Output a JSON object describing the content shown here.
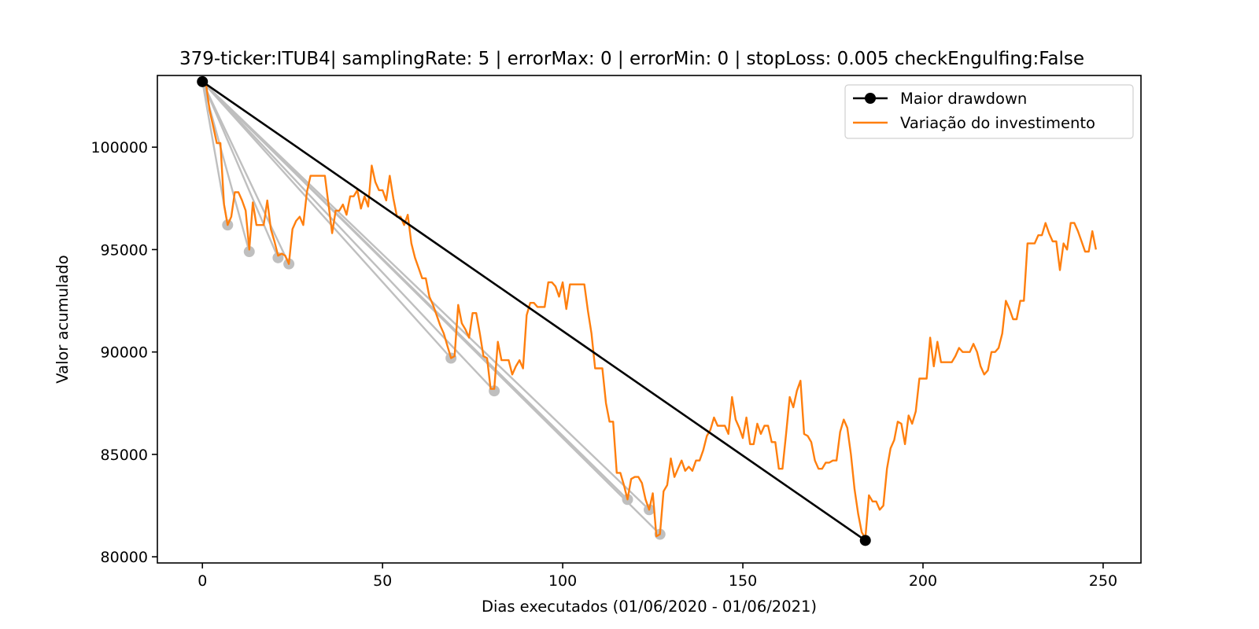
{
  "chart_data": {
    "type": "line",
    "title": "379-ticker:ITUB4| samplingRate: 5 | errorMax: 0 | errorMin: 0 | stopLoss: 0.005 checkEngulfing:False",
    "xlabel": "Dias executados (01/06/2020 - 01/06/2021)",
    "ylabel": "Valor acumulado",
    "xlim": [
      -12.5,
      260.5
    ],
    "ylim": [
      79700,
      103500
    ],
    "xticks": [
      0,
      50,
      100,
      150,
      200,
      250
    ],
    "yticks": [
      80000,
      85000,
      90000,
      95000,
      100000
    ],
    "xtick_labels": [
      "0",
      "50",
      "100",
      "150",
      "200",
      "250"
    ],
    "ytick_labels": [
      "80000",
      "85000",
      "90000",
      "95000",
      "100000"
    ],
    "grid": false,
    "legend_position": "upper right",
    "colors": {
      "investment": "#ff7f0e",
      "max_drawdown": "#000000",
      "drawdowns": "#bfbfbf"
    },
    "series": [
      {
        "name": "Variação do investimento",
        "x": [
          0,
          1,
          2,
          3,
          4,
          5,
          6,
          7,
          8,
          9,
          10,
          11,
          12,
          13,
          14,
          15,
          16,
          17,
          18,
          19,
          20,
          21,
          22,
          23,
          24,
          25,
          26,
          27,
          28,
          29,
          30,
          31,
          32,
          33,
          34,
          35,
          36,
          37,
          38,
          39,
          40,
          41,
          42,
          43,
          44,
          45,
          46,
          47,
          48,
          49,
          50,
          51,
          52,
          53,
          54,
          55,
          56,
          57,
          58,
          59,
          60,
          61,
          62,
          63,
          64,
          65,
          66,
          67,
          68,
          69,
          70,
          71,
          72,
          73,
          74,
          75,
          76,
          77,
          78,
          79,
          80,
          81,
          82,
          83,
          84,
          85,
          86,
          87,
          88,
          89,
          90,
          91,
          92,
          93,
          94,
          95,
          96,
          97,
          98,
          99,
          100,
          101,
          102,
          103,
          104,
          105,
          106,
          107,
          108,
          109,
          110,
          111,
          112,
          113,
          114,
          115,
          116,
          117,
          118,
          119,
          120,
          121,
          122,
          123,
          124,
          125,
          126,
          127,
          128,
          129,
          130,
          131,
          132,
          133,
          134,
          135,
          136,
          137,
          138,
          139,
          140,
          141,
          142,
          143,
          144,
          145,
          146,
          147,
          148,
          149,
          150,
          151,
          152,
          153,
          154,
          155,
          156,
          157,
          158,
          159,
          160,
          161,
          162,
          163,
          164,
          165,
          166,
          167,
          168,
          169,
          170,
          171,
          172,
          173,
          174,
          175,
          176,
          177,
          178,
          179,
          180,
          181,
          182,
          183,
          184,
          185,
          186,
          187,
          188,
          189,
          190,
          191,
          192,
          193,
          194,
          195,
          196,
          197,
          198,
          199,
          200,
          201,
          202,
          203,
          204,
          205,
          206,
          207,
          208,
          209,
          210,
          211,
          212,
          213,
          214,
          215,
          216,
          217,
          218,
          219,
          220,
          221,
          222,
          223,
          224,
          225,
          226,
          227,
          228,
          229,
          230,
          231,
          232,
          233,
          234,
          235,
          236,
          237,
          238,
          239,
          240,
          241,
          242,
          243,
          244,
          245,
          246,
          247,
          248
        ],
        "y": [
          103200,
          103100,
          101800,
          101000,
          100200,
          100200,
          97200,
          96200,
          96600,
          97800,
          97800,
          97400,
          96900,
          95000,
          97300,
          96200,
          96200,
          96200,
          97400,
          96000,
          95400,
          94700,
          94800,
          94700,
          94300,
          96000,
          96400,
          96600,
          96200,
          97800,
          98600,
          98600,
          98600,
          98600,
          98600,
          97200,
          95800,
          96900,
          96900,
          97200,
          96700,
          97600,
          97600,
          97900,
          97000,
          97600,
          97100,
          99100,
          98300,
          97900,
          97900,
          97400,
          98600,
          97500,
          96600,
          96600,
          96200,
          96700,
          95300,
          94600,
          94100,
          93600,
          93600,
          92700,
          92300,
          91800,
          91300,
          90900,
          90300,
          89700,
          89800,
          92300,
          91400,
          91100,
          90700,
          91900,
          91900,
          90900,
          89800,
          89700,
          88200,
          88200,
          90500,
          89600,
          89600,
          89600,
          88900,
          89300,
          89600,
          89200,
          91800,
          92400,
          92400,
          92200,
          92200,
          92200,
          93400,
          93400,
          93200,
          92700,
          93400,
          92100,
          93300,
          93300,
          93300,
          93300,
          93300,
          92000,
          90900,
          89200,
          89200,
          89200,
          87500,
          86600,
          86600,
          84100,
          84100,
          83500,
          82800,
          83800,
          83900,
          83900,
          83600,
          82800,
          82300,
          83100,
          81000,
          81100,
          83200,
          83500,
          84800,
          83900,
          84300,
          84700,
          84200,
          84400,
          84200,
          84700,
          84700,
          85200,
          85900,
          86200,
          86800,
          86400,
          86400,
          86400,
          86000,
          87800,
          86700,
          86300,
          85800,
          86800,
          85500,
          85500,
          86500,
          86000,
          86400,
          86400,
          85600,
          85600,
          84300,
          84300,
          86000,
          87800,
          87300,
          88100,
          88600,
          86000,
          85900,
          85600,
          84700,
          84300,
          84300,
          84600,
          84600,
          84700,
          84700,
          86100,
          86700,
          86300,
          85000,
          83300,
          82100,
          81200,
          80900,
          83000,
          82700,
          82700,
          82300,
          82500,
          84300,
          85300,
          85700,
          86600,
          86500,
          85500,
          86900,
          86500,
          87100,
          88700,
          88700,
          88700,
          90700,
          89300,
          90500,
          89500,
          89500,
          89500,
          89500,
          89800,
          90200,
          90000,
          90000,
          90000,
          90400,
          90000,
          89300,
          88900,
          89100,
          90000,
          90000,
          90200,
          90900,
          92500,
          92100,
          91600,
          91600,
          92500,
          92500,
          95300,
          95300,
          95300,
          95700,
          95700,
          96300,
          95800,
          95400,
          95400,
          94000,
          95300,
          95000,
          96300,
          96300,
          95900,
          95400,
          94900,
          94900,
          95900,
          95000
        ]
      }
    ],
    "max_drawdown": {
      "name": "Maior drawdown",
      "start": {
        "x": 0,
        "y": 103200
      },
      "end": {
        "x": 184,
        "y": 80800
      }
    },
    "drawdowns": [
      {
        "start": [
          0,
          103200
        ],
        "end": [
          7,
          96200
        ]
      },
      {
        "start": [
          0,
          103200
        ],
        "end": [
          13,
          94900
        ]
      },
      {
        "start": [
          0,
          103200
        ],
        "end": [
          21,
          94600
        ]
      },
      {
        "start": [
          0,
          103200
        ],
        "end": [
          24,
          94300
        ]
      },
      {
        "start": [
          0,
          103200
        ],
        "end": [
          69,
          89700
        ]
      },
      {
        "start": [
          0,
          103200
        ],
        "end": [
          81,
          88100
        ]
      },
      {
        "start": [
          0,
          103200
        ],
        "end": [
          118,
          82800
        ]
      },
      {
        "start": [
          0,
          103200
        ],
        "end": [
          124,
          82300
        ]
      },
      {
        "start": [
          0,
          103200
        ],
        "end": [
          127,
          81100
        ]
      }
    ]
  }
}
